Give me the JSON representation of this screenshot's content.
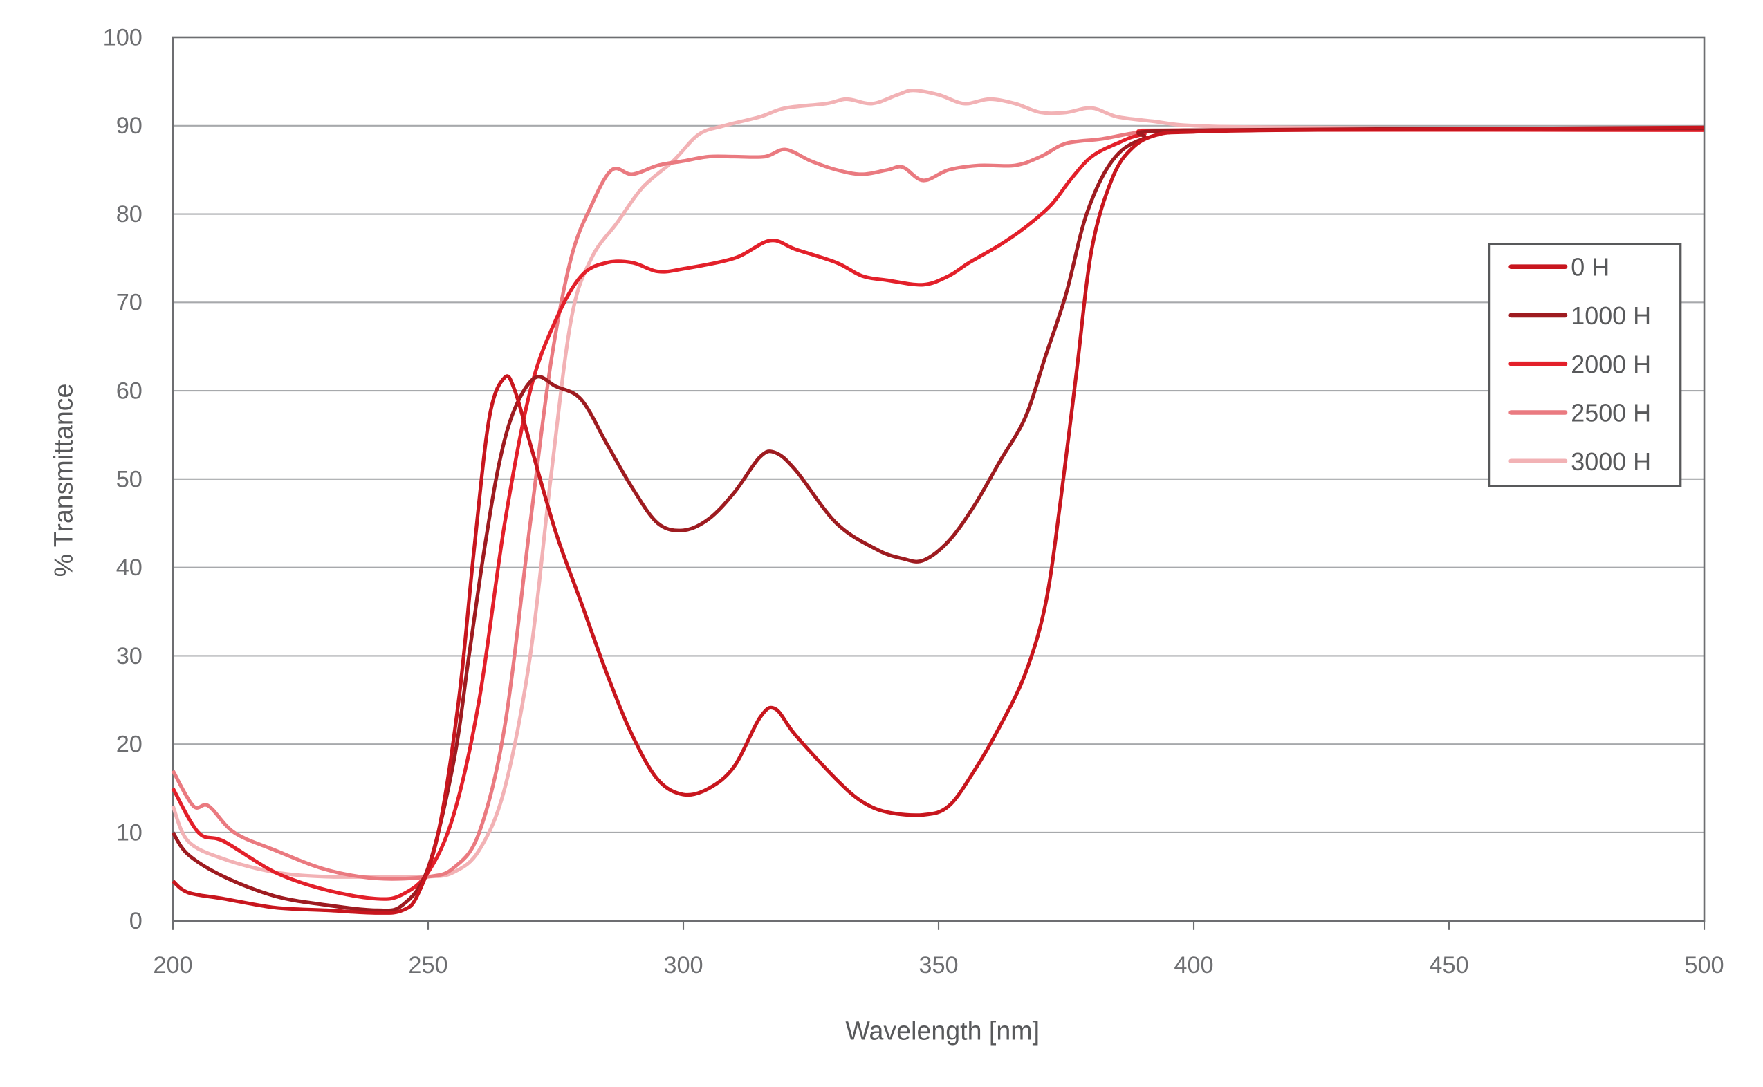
{
  "chart_data": {
    "type": "line",
    "title": "",
    "xlabel": "Wavelength [nm]",
    "ylabel": "% Transmittance",
    "xlim": [
      200,
      500
    ],
    "ylim": [
      0,
      100
    ],
    "xticks": [
      200,
      250,
      300,
      350,
      400,
      450,
      500
    ],
    "yticks": [
      0,
      10,
      20,
      30,
      40,
      50,
      60,
      70,
      80,
      90,
      100
    ],
    "grid": "horizontal",
    "legend_position": "right",
    "series": [
      {
        "name": "0 H",
        "color": "#c8161e",
        "x": [
          200,
          203,
          210,
          220,
          230,
          240,
          245,
          248,
          252,
          256,
          259,
          262,
          265,
          267,
          270,
          275,
          280,
          285,
          290,
          295,
          300,
          305,
          310,
          315,
          318,
          322,
          330,
          335,
          340,
          347,
          352,
          357,
          362,
          367,
          371,
          374,
          377,
          380,
          384,
          388,
          393,
          400,
          420,
          500
        ],
        "y": [
          4.5,
          3.2,
          2.5,
          1.5,
          1.2,
          0.9,
          1.2,
          3,
          10,
          25,
          42,
          57,
          61.5,
          60,
          54,
          44,
          36,
          28,
          21,
          16,
          14.3,
          15,
          17.5,
          23,
          24,
          21,
          16,
          13.5,
          12.3,
          12,
          13,
          17,
          22,
          28,
          36,
          48,
          62,
          76,
          84,
          87.5,
          89,
          89.3,
          89.5,
          89.8
        ]
      },
      {
        "name": "1000 H",
        "color": "#9e1b20",
        "x": [
          200,
          203,
          210,
          220,
          230,
          240,
          245,
          250,
          255,
          258,
          261,
          264,
          267,
          271,
          275,
          280,
          285,
          290,
          295,
          300,
          305,
          310,
          315,
          318,
          322,
          330,
          338,
          343,
          347,
          352,
          357,
          362,
          367,
          371,
          375,
          379,
          384,
          390,
          400,
          500
        ],
        "y": [
          10,
          7.5,
          5,
          2.8,
          1.8,
          1.2,
          1.8,
          6,
          18,
          30,
          42,
          52,
          58,
          61.5,
          60.5,
          59,
          54,
          49,
          45,
          44.2,
          45.5,
          48.5,
          52.5,
          53,
          51,
          45,
          42,
          41,
          40.8,
          43,
          47,
          52,
          57,
          64,
          71,
          80,
          86,
          88.5,
          89.5,
          89.7
        ]
      },
      {
        "name": "2000 H",
        "color": "#e3202a",
        "x": [
          200,
          205,
          210,
          220,
          230,
          240,
          245,
          250,
          255,
          260,
          265,
          270,
          275,
          280,
          285,
          290,
          295,
          300,
          310,
          317,
          322,
          330,
          335,
          340,
          347,
          352,
          356,
          362,
          367,
          372,
          376,
          380,
          385,
          390,
          400,
          500
        ],
        "y": [
          15,
          10,
          9,
          5.5,
          3.5,
          2.5,
          3,
          5.5,
          12,
          25,
          45,
          60,
          68,
          73,
          74.5,
          74.5,
          73.5,
          73.8,
          75,
          77,
          76,
          74.5,
          73,
          72.5,
          72,
          73,
          74.5,
          76.5,
          78.5,
          81,
          84,
          86.5,
          88,
          89,
          89.5,
          89.5
        ]
      },
      {
        "name": "2500 H",
        "color": "#ea7a80",
        "x": [
          200,
          204,
          207,
          212,
          220,
          230,
          240,
          250,
          255,
          260,
          265,
          270,
          274,
          278,
          282,
          286,
          290,
          295,
          300,
          305,
          310,
          316,
          320,
          325,
          330,
          335,
          340,
          343,
          347,
          352,
          358,
          365,
          370,
          375,
          382,
          390,
          400,
          500
        ],
        "y": [
          17,
          13,
          13,
          10,
          8,
          5.8,
          4.8,
          5,
          6,
          10,
          22,
          45,
          63,
          75,
          81,
          85,
          84.5,
          85.5,
          86,
          86.5,
          86.5,
          86.5,
          87.3,
          86,
          85,
          84.5,
          85,
          85.3,
          83.8,
          85,
          85.5,
          85.5,
          86.5,
          88,
          88.5,
          89.3,
          89.5,
          89.5
        ]
      },
      {
        "name": "3000 H",
        "color": "#f2b2b5",
        "x": [
          200,
          203,
          210,
          220,
          230,
          240,
          250,
          255,
          260,
          265,
          270,
          274,
          278,
          282,
          287,
          292,
          298,
          303,
          308,
          315,
          320,
          328,
          332,
          337,
          342,
          345,
          350,
          355,
          360,
          365,
          370,
          375,
          380,
          385,
          392,
          400,
          420,
          500
        ],
        "y": [
          13,
          9,
          7,
          5.5,
          5,
          5,
          5,
          5.5,
          8,
          15,
          30,
          50,
          68,
          75,
          79,
          83,
          86,
          89,
          90,
          91,
          92,
          92.5,
          93,
          92.5,
          93.5,
          94,
          93.5,
          92.5,
          93,
          92.5,
          91.5,
          91.5,
          92,
          91,
          90.5,
          90,
          89.8,
          89.5
        ]
      }
    ]
  }
}
